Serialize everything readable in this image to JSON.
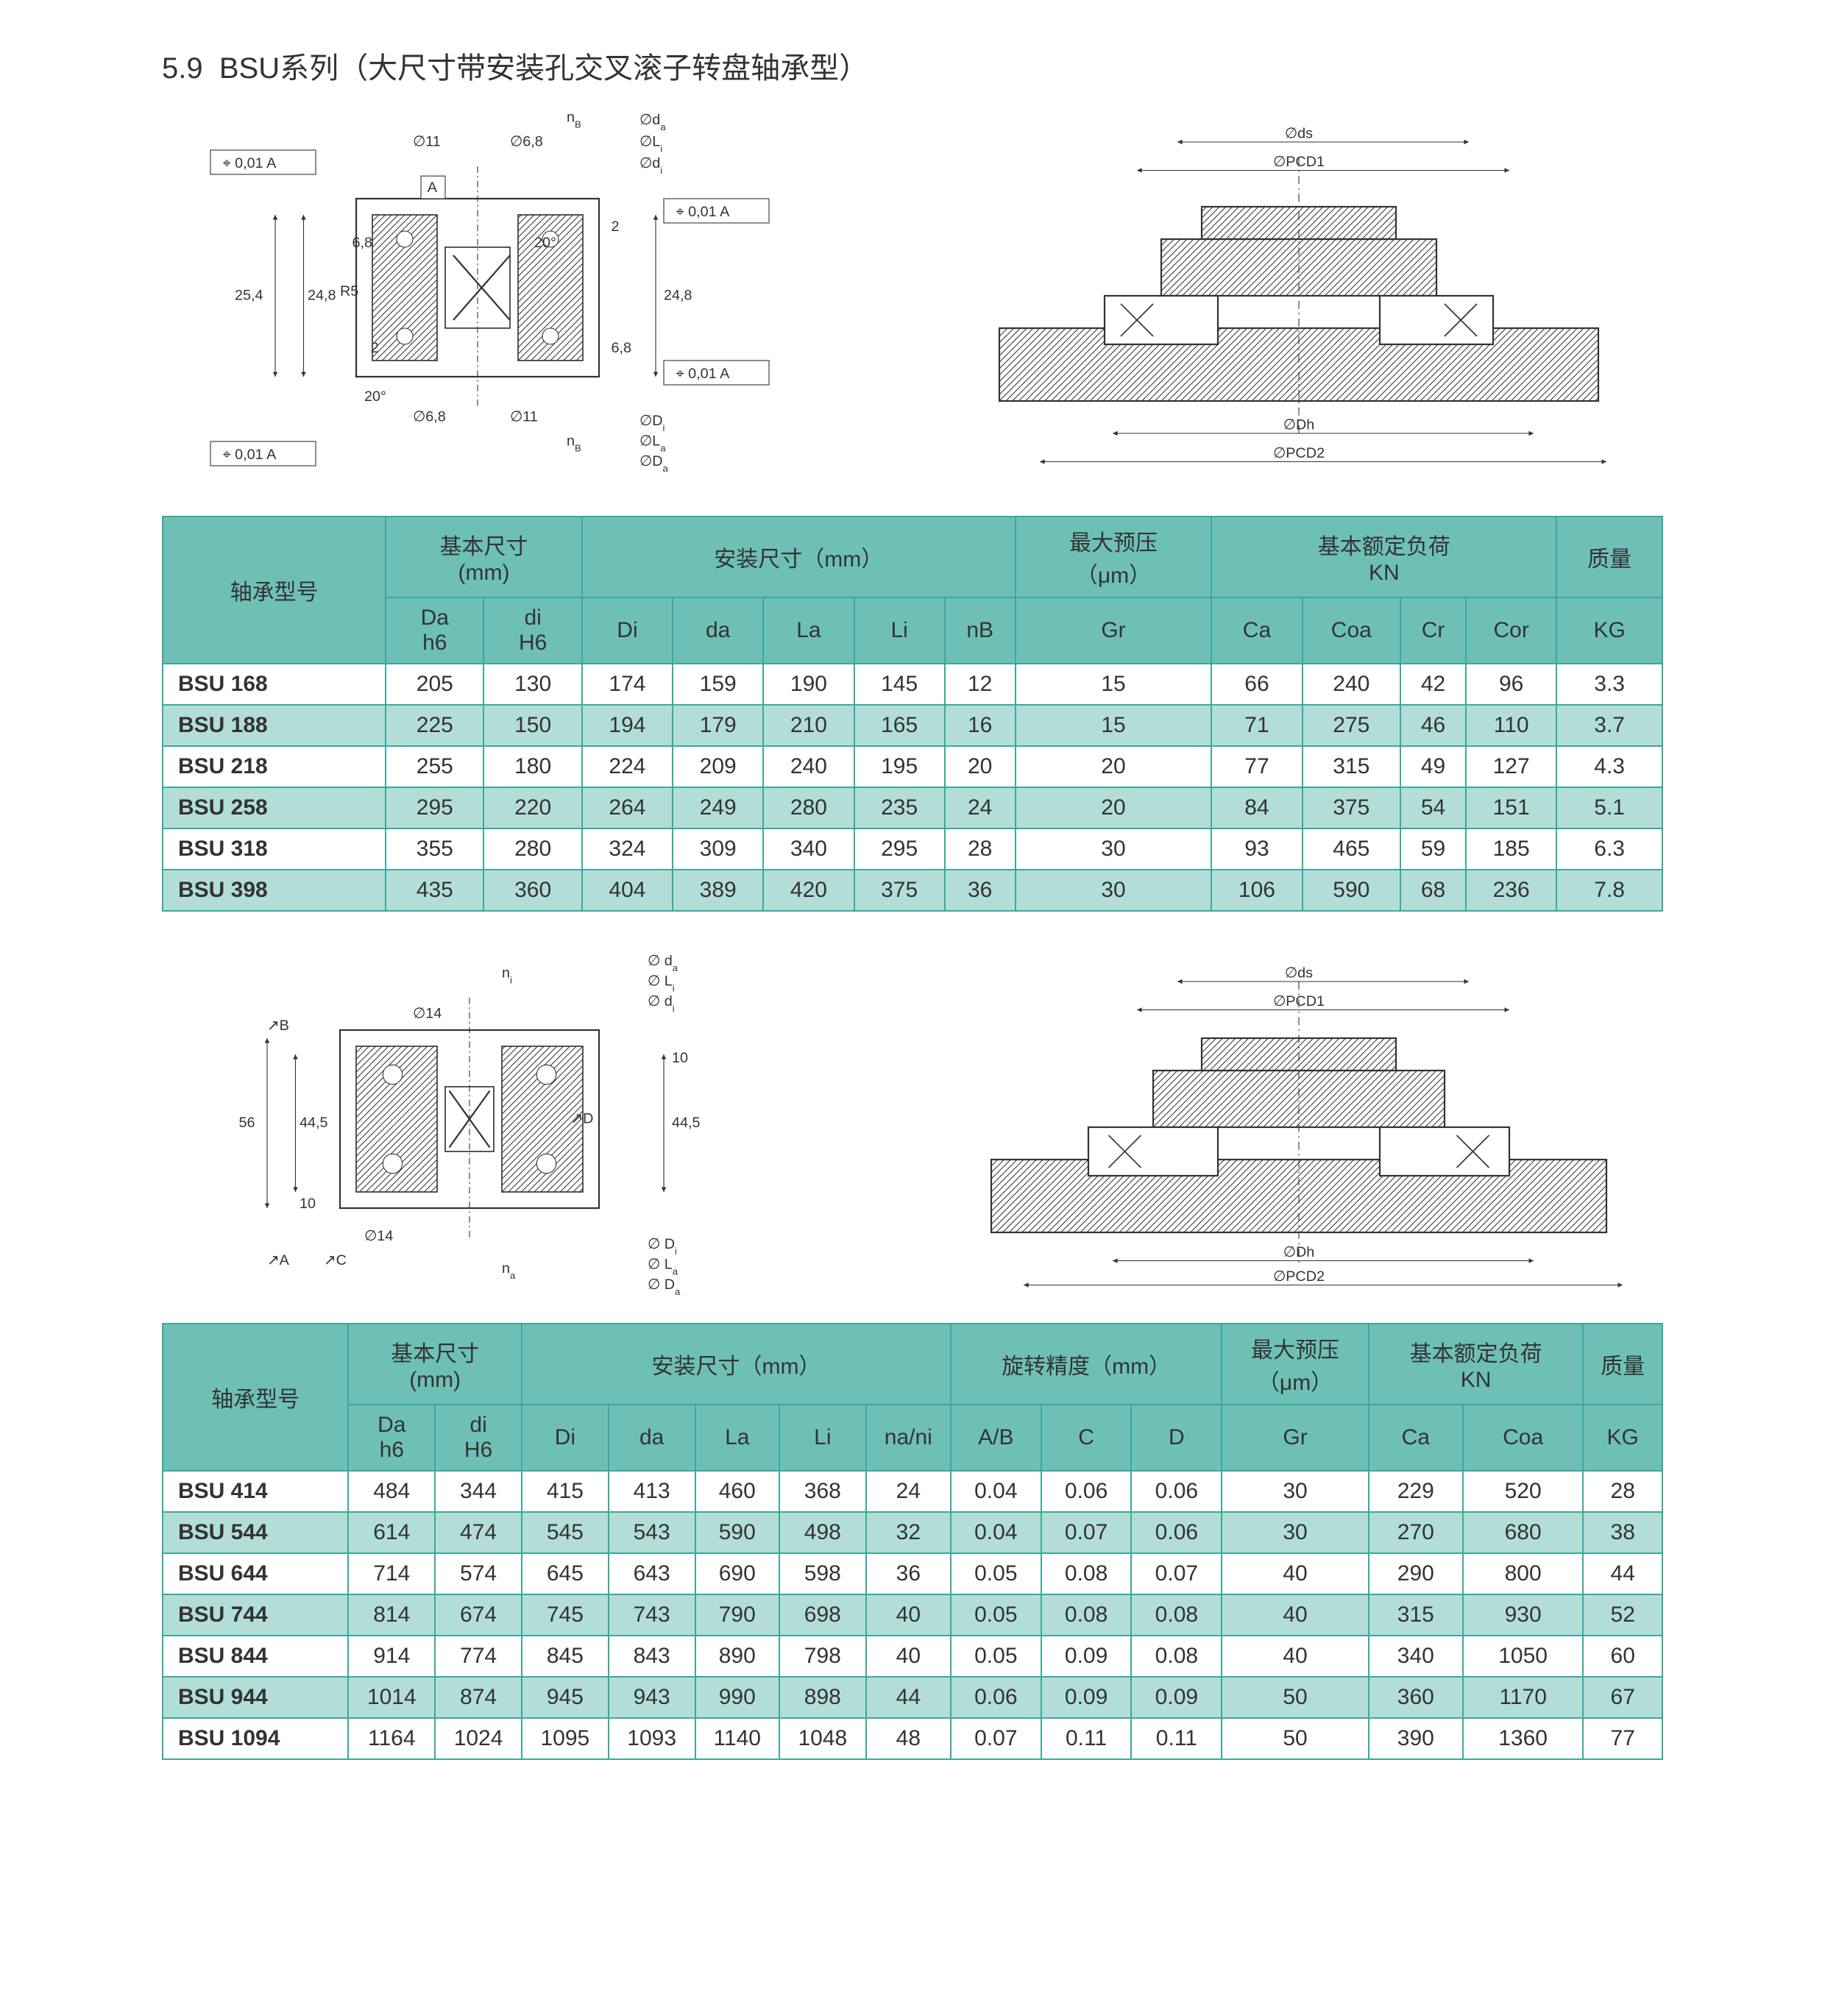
{
  "section": {
    "number": "5.9",
    "title": "BSU系列（大尺寸带安装孔交叉滚子转盘轴承型）"
  },
  "diagram1": {
    "labels": {
      "tol": "0,01",
      "tolA": "A",
      "d11": "∅11",
      "d68": "∅6,8",
      "d14": "∅14",
      "h68": "6,8",
      "h2": "2",
      "h254": "25,4",
      "h248": "24,8",
      "R5": "R5",
      "ang20": "20°",
      "nB": "n",
      "nBsub": "B",
      "da": "∅d",
      "dasub": "a",
      "Li": "∅L",
      "Lisub": "i",
      "di": "∅d",
      "disub": "i",
      "Di": "∅D",
      "Disub": "i",
      "La": "∅L",
      "Lasub": "a",
      "Da": "∅D",
      "Dasub": "a",
      "ds": "∅ds",
      "PCD1": "∅PCD1",
      "Dh": "∅Dh",
      "PCD2": "∅PCD2",
      "na": "n",
      "nasub": "a",
      "ni": "n",
      "nisub": "i",
      "h56": "56",
      "h445": "44,5",
      "h10": "10",
      "B": "B",
      "C": "C",
      "D": "D",
      "tolA2": "A"
    }
  },
  "table1": {
    "header": {
      "model": "轴承型号",
      "basic_dim": "基本尺寸",
      "basic_dim_unit": "(mm)",
      "mount_dim": "安装尺寸（mm）",
      "preload": "最大预压",
      "preload_unit": "（μm）",
      "rated_load": "基本额定负荷",
      "rated_load_unit": "KN",
      "mass": "质量",
      "Da": "Da",
      "Da_sub": "h6",
      "di": "di",
      "di_sub": "H6",
      "Di": "Di",
      "da": "da",
      "La": "La",
      "Li": "Li",
      "nB": "nB",
      "Gr": "Gr",
      "Ca": "Ca",
      "Coa": "Coa",
      "Cr": "Cr",
      "Cor": "Cor",
      "KG": "KG"
    },
    "rows": [
      {
        "model": "BSU 168",
        "Da": 205,
        "di": 130,
        "Di": 174,
        "da": 159,
        "La": 190,
        "Li": 145,
        "nB": 12,
        "Gr": 15,
        "Ca": 66,
        "Coa": 240,
        "Cr": 42,
        "Cor": 96,
        "KG": 3.3
      },
      {
        "model": "BSU 188",
        "Da": 225,
        "di": 150,
        "Di": 194,
        "da": 179,
        "La": 210,
        "Li": 165,
        "nB": 16,
        "Gr": 15,
        "Ca": 71,
        "Coa": 275,
        "Cr": 46,
        "Cor": 110,
        "KG": 3.7
      },
      {
        "model": "BSU 218",
        "Da": 255,
        "di": 180,
        "Di": 224,
        "da": 209,
        "La": 240,
        "Li": 195,
        "nB": 20,
        "Gr": 20,
        "Ca": 77,
        "Coa": 315,
        "Cr": 49,
        "Cor": 127,
        "KG": 4.3
      },
      {
        "model": "BSU 258",
        "Da": 295,
        "di": 220,
        "Di": 264,
        "da": 249,
        "La": 280,
        "Li": 235,
        "nB": 24,
        "Gr": 20,
        "Ca": 84,
        "Coa": 375,
        "Cr": 54,
        "Cor": 151,
        "KG": 5.1
      },
      {
        "model": "BSU 318",
        "Da": 355,
        "di": 280,
        "Di": 324,
        "da": 309,
        "La": 340,
        "Li": 295,
        "nB": 28,
        "Gr": 30,
        "Ca": 93,
        "Coa": 465,
        "Cr": 59,
        "Cor": 185,
        "KG": 6.3
      },
      {
        "model": "BSU 398",
        "Da": 435,
        "di": 360,
        "Di": 404,
        "da": 389,
        "La": 420,
        "Li": 375,
        "nB": 36,
        "Gr": 30,
        "Ca": 106,
        "Coa": 590,
        "Cr": 68,
        "Cor": 236,
        "KG": 7.8
      }
    ]
  },
  "table2": {
    "header": {
      "model": "轴承型号",
      "basic_dim": "基本尺寸",
      "basic_dim_unit": "(mm)",
      "mount_dim": "安装尺寸（mm）",
      "rot_acc": "旋转精度（mm）",
      "preload": "最大预压",
      "preload_unit": "（μm）",
      "rated_load": "基本额定负荷",
      "rated_load_unit": "KN",
      "mass": "质量",
      "Da": "Da",
      "Da_sub": "h6",
      "di": "di",
      "di_sub": "H6",
      "Di": "Di",
      "da": "da",
      "La": "La",
      "Li": "Li",
      "nani": "na/ni",
      "AB": "A/B",
      "C": "C",
      "D": "D",
      "Gr": "Gr",
      "Ca": "Ca",
      "Coa": "Coa",
      "KG": "KG"
    },
    "rows": [
      {
        "model": "BSU  414",
        "Da": 484,
        "di": 344,
        "Di": 415,
        "da": 413,
        "La": 460,
        "Li": 368,
        "nani": 24,
        "AB": 0.04,
        "C": 0.06,
        "D": 0.06,
        "Gr": 30,
        "Ca": 229,
        "Coa": 520,
        "KG": 28
      },
      {
        "model": "BSU  544",
        "Da": 614,
        "di": 474,
        "Di": 545,
        "da": 543,
        "La": 590,
        "Li": 498,
        "nani": 32,
        "AB": 0.04,
        "C": 0.07,
        "D": 0.06,
        "Gr": 30,
        "Ca": 270,
        "Coa": 680,
        "KG": 38
      },
      {
        "model": "BSU  644",
        "Da": 714,
        "di": 574,
        "Di": 645,
        "da": 643,
        "La": 690,
        "Li": 598,
        "nani": 36,
        "AB": 0.05,
        "C": 0.08,
        "D": 0.07,
        "Gr": 40,
        "Ca": 290,
        "Coa": 800,
        "KG": 44
      },
      {
        "model": "BSU  744",
        "Da": 814,
        "di": 674,
        "Di": 745,
        "da": 743,
        "La": 790,
        "Li": 698,
        "nani": 40,
        "AB": 0.05,
        "C": 0.08,
        "D": 0.08,
        "Gr": 40,
        "Ca": 315,
        "Coa": 930,
        "KG": 52
      },
      {
        "model": "BSU  844",
        "Da": 914,
        "di": 774,
        "Di": 845,
        "da": 843,
        "La": 890,
        "Li": 798,
        "nani": 40,
        "AB": 0.05,
        "C": 0.09,
        "D": 0.08,
        "Gr": 40,
        "Ca": 340,
        "Coa": 1050,
        "KG": 60
      },
      {
        "model": "BSU  944",
        "Da": 1014,
        "di": 874,
        "Di": 945,
        "da": 943,
        "La": 990,
        "Li": 898,
        "nani": 44,
        "AB": 0.06,
        "C": 0.09,
        "D": 0.09,
        "Gr": 50,
        "Ca": 360,
        "Coa": 1170,
        "KG": 67
      },
      {
        "model": "BSU 1094",
        "Da": 1164,
        "di": 1024,
        "Di": 1095,
        "da": 1093,
        "La": 1140,
        "Li": 1048,
        "nani": 48,
        "AB": 0.07,
        "C": 0.11,
        "D": 0.11,
        "Gr": 50,
        "Ca": 390,
        "Coa": 1360,
        "KG": 77
      }
    ]
  },
  "style": {
    "teal_dark": "#3aa89e",
    "teal_header": "#6ec0b7",
    "teal_light": "#b3ded8",
    "text": "#333333",
    "bg": "#ffffff"
  }
}
